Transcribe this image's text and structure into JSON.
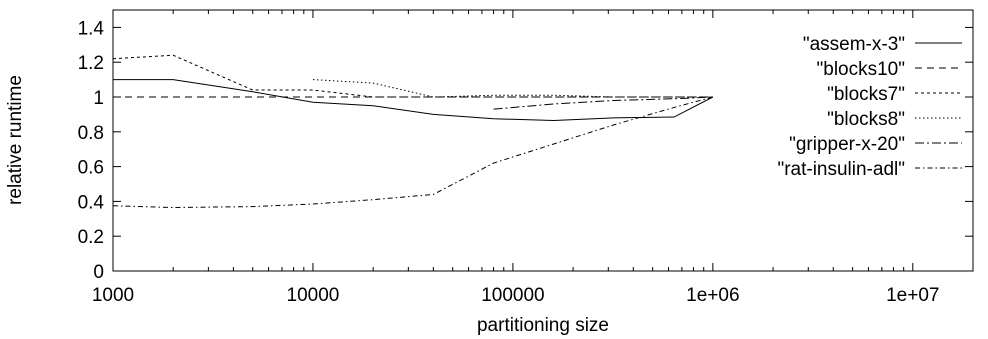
{
  "chart_data": {
    "type": "line",
    "xlabel": "partitioning size",
    "ylabel": "relative runtime",
    "xscale": "log",
    "xlim": [
      1000,
      20000000
    ],
    "ylim": [
      0,
      1.5
    ],
    "xticks": [
      {
        "value": 1000,
        "label": "1000"
      },
      {
        "value": 10000,
        "label": "10000"
      },
      {
        "value": 100000,
        "label": "100000"
      },
      {
        "value": 1000000,
        "label": "1e+06"
      },
      {
        "value": 10000000,
        "label": "1e+07"
      }
    ],
    "yticks": [
      {
        "value": 0,
        "label": "0"
      },
      {
        "value": 0.2,
        "label": "0.2"
      },
      {
        "value": 0.4,
        "label": "0.4"
      },
      {
        "value": 0.6,
        "label": "0.6"
      },
      {
        "value": 0.8,
        "label": "0.8"
      },
      {
        "value": 1,
        "label": "1"
      },
      {
        "value": 1.2,
        "label": "1.2"
      },
      {
        "value": 1.4,
        "label": "1.4"
      }
    ],
    "grid": false,
    "legend_position": "top-right",
    "series": [
      {
        "name": "\"assem-x-3\"",
        "dash": "",
        "points": [
          [
            1000,
            1.1
          ],
          [
            2000,
            1.1
          ],
          [
            5000,
            1.03
          ],
          [
            10000,
            0.97
          ],
          [
            20000,
            0.95
          ],
          [
            40000,
            0.9
          ],
          [
            80000,
            0.875
          ],
          [
            160000,
            0.865
          ],
          [
            320000,
            0.88
          ],
          [
            640000,
            0.885
          ],
          [
            1000000,
            1.0
          ]
        ]
      },
      {
        "name": "\"blocks10\"",
        "dash": "7,5",
        "points": [
          [
            1000,
            1.0
          ],
          [
            2000,
            1.0
          ],
          [
            5000,
            1.0
          ],
          [
            10000,
            1.0
          ],
          [
            20000,
            1.0
          ],
          [
            40000,
            1.0
          ],
          [
            80000,
            1.0
          ],
          [
            160000,
            1.0
          ],
          [
            320000,
            1.0
          ],
          [
            640000,
            1.0
          ],
          [
            1000000,
            1.0
          ]
        ]
      },
      {
        "name": "\"blocks7\"",
        "dash": "3,3",
        "points": [
          [
            1000,
            1.22
          ],
          [
            2000,
            1.24
          ],
          [
            5000,
            1.04
          ],
          [
            10000,
            1.04
          ],
          [
            20000,
            1.0
          ],
          [
            40000,
            1.0
          ],
          [
            80000,
            1.0
          ],
          [
            160000,
            1.0
          ],
          [
            320000,
            1.0
          ],
          [
            640000,
            1.0
          ],
          [
            1000000,
            1.0
          ]
        ]
      },
      {
        "name": "\"blocks8\"",
        "dash": "1.5,2.5",
        "points": [
          [
            10000,
            1.1
          ],
          [
            20000,
            1.08
          ],
          [
            40000,
            1.0
          ],
          [
            80000,
            1.01
          ],
          [
            160000,
            1.01
          ],
          [
            320000,
            1.0
          ],
          [
            640000,
            1.0
          ],
          [
            1000000,
            1.0
          ]
        ]
      },
      {
        "name": "\"gripper-x-20\"",
        "dash": "9,3,2,3",
        "points": [
          [
            80000,
            0.93
          ],
          [
            160000,
            0.96
          ],
          [
            320000,
            0.98
          ],
          [
            640000,
            0.99
          ],
          [
            1000000,
            1.0
          ]
        ]
      },
      {
        "name": "\"rat-insulin-adl\"",
        "dash": "5,3,1.5,3",
        "points": [
          [
            1000,
            0.375
          ],
          [
            2000,
            0.365
          ],
          [
            5000,
            0.37
          ],
          [
            10000,
            0.385
          ],
          [
            20000,
            0.41
          ],
          [
            40000,
            0.44
          ],
          [
            80000,
            0.62
          ],
          [
            160000,
            0.73
          ],
          [
            320000,
            0.84
          ],
          [
            640000,
            0.94
          ],
          [
            1000000,
            1.0
          ]
        ]
      }
    ]
  }
}
